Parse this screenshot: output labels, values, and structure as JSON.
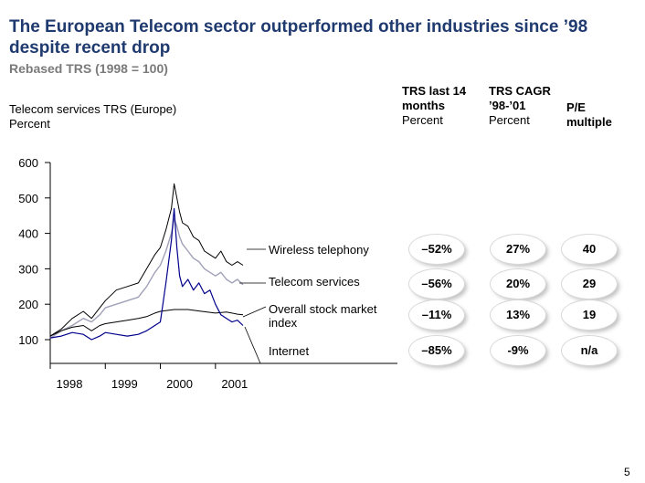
{
  "title": "The European Telecom sector outperformed other industries since ’98 despite recent drop",
  "subtitle": "Rebased TRS (1998 = 100)",
  "chart_label": {
    "line1": "Telecom services TRS (Europe)",
    "line2": "Percent"
  },
  "table_headers": [
    {
      "line1": "TRS last 14",
      "line2": "months",
      "line3": "Percent"
    },
    {
      "line1": "TRS CAGR",
      "line2": "’98-’01",
      "line3": "Percent"
    },
    {
      "line1": "P/E",
      "line2": "multiple",
      "line3": ""
    }
  ],
  "rows": [
    {
      "label1": "Wireless telephony",
      "label2": "",
      "trs14": "–52%",
      "cagr": "27%",
      "pe": "40"
    },
    {
      "label1": "Telecom services",
      "label2": "",
      "trs14": "–56%",
      "cagr": "20%",
      "pe": "29"
    },
    {
      "label1": "Overall stock market",
      "label2": "index",
      "trs14": "–11%",
      "cagr": "13%",
      "pe": "19"
    },
    {
      "label1": "Internet",
      "label2": "",
      "trs14": "–85%",
      "cagr": "-9%",
      "pe": "n/a"
    }
  ],
  "page_number": "5",
  "colors": {
    "title": "#1f3a6e",
    "wireless": "#000000",
    "telecom": "#a0a0b8",
    "market": "#000000",
    "internet": "#00008b"
  },
  "chart_data": {
    "type": "line",
    "title": "",
    "xlabel": "",
    "ylabel": "",
    "xlim": [
      1998,
      2001.65
    ],
    "ylim": [
      100,
      600
    ],
    "y_ticks": [
      600,
      500,
      400,
      300,
      200,
      100
    ],
    "x_ticks": [
      1998,
      1999,
      2000,
      2001
    ],
    "x_tick_labels": [
      "1998",
      "1999",
      "2000",
      "2001"
    ],
    "grid": false,
    "series": [
      {
        "name": "Wireless telephony",
        "x": [
          1998.0,
          1998.2,
          1998.4,
          1998.6,
          1998.75,
          1998.9,
          1999.0,
          1999.2,
          1999.4,
          1999.6,
          1999.75,
          1999.9,
          2000.0,
          2000.1,
          2000.2,
          2000.25,
          2000.3,
          2000.35,
          2000.4,
          2000.5,
          2000.6,
          2000.7,
          2000.8,
          2000.9,
          2001.0,
          2001.1,
          2001.2,
          2001.3,
          2001.4,
          2001.5
        ],
        "y": [
          110,
          130,
          160,
          180,
          160,
          190,
          210,
          240,
          250,
          260,
          300,
          340,
          360,
          410,
          470,
          540,
          500,
          460,
          430,
          420,
          390,
          380,
          350,
          340,
          330,
          350,
          320,
          310,
          320,
          310
        ]
      },
      {
        "name": "Telecom services",
        "x": [
          1998.0,
          1998.2,
          1998.4,
          1998.6,
          1998.75,
          1998.9,
          1999.0,
          1999.2,
          1999.4,
          1999.6,
          1999.75,
          1999.9,
          2000.0,
          2000.1,
          2000.2,
          2000.25,
          2000.3,
          2000.35,
          2000.4,
          2000.5,
          2000.6,
          2000.7,
          2000.8,
          2000.9,
          2001.0,
          2001.1,
          2001.2,
          2001.3,
          2001.4,
          2001.5
        ],
        "y": [
          105,
          125,
          140,
          160,
          150,
          170,
          190,
          200,
          210,
          220,
          250,
          290,
          310,
          350,
          400,
          440,
          420,
          390,
          370,
          350,
          330,
          320,
          300,
          290,
          280,
          290,
          270,
          260,
          270,
          255
        ]
      },
      {
        "name": "Overall stock market index",
        "x": [
          1998.0,
          1998.2,
          1998.4,
          1998.6,
          1998.75,
          1998.9,
          1999.0,
          1999.2,
          1999.4,
          1999.6,
          1999.75,
          1999.9,
          2000.0,
          2000.25,
          2000.5,
          2000.75,
          2001.0,
          2001.2,
          2001.4,
          2001.5
        ],
        "y": [
          110,
          125,
          135,
          140,
          125,
          140,
          145,
          150,
          155,
          160,
          165,
          175,
          180,
          185,
          185,
          180,
          175,
          178,
          172,
          170
        ]
      },
      {
        "name": "Internet",
        "x": [
          1998.0,
          1998.2,
          1998.4,
          1998.6,
          1998.75,
          1998.9,
          1999.0,
          1999.2,
          1999.4,
          1999.6,
          1999.75,
          1999.9,
          2000.0,
          2000.1,
          2000.2,
          2000.25,
          2000.3,
          2000.35,
          2000.4,
          2000.5,
          2000.6,
          2000.7,
          2000.8,
          2000.9,
          2001.0,
          2001.1,
          2001.2,
          2001.3,
          2001.4,
          2001.5
        ],
        "y": [
          105,
          110,
          120,
          115,
          100,
          110,
          120,
          115,
          110,
          115,
          125,
          140,
          150,
          260,
          380,
          470,
          360,
          280,
          250,
          270,
          240,
          260,
          230,
          240,
          200,
          170,
          160,
          150,
          155,
          140
        ]
      }
    ]
  }
}
